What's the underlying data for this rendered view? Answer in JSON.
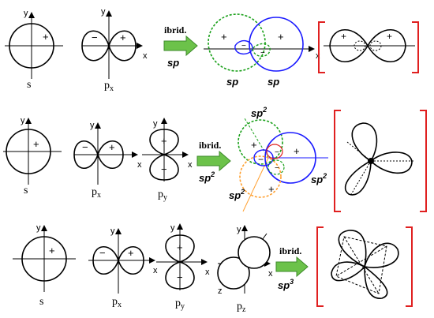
{
  "axes": {
    "x": "x",
    "y": "y",
    "z": "z"
  },
  "signs": {
    "plus": "+",
    "minus": "−"
  },
  "labels": {
    "s": "s",
    "p": "p",
    "px_sub": "x",
    "py_sub": "y",
    "pz_sub": "z"
  },
  "arrow_text": "ibrid.",
  "row1": {
    "hybrid": "sp",
    "lobe_a": "sp",
    "lobe_b": "sp"
  },
  "row2": {
    "hybrid": "sp",
    "sup": "2",
    "lobe_a": "sp",
    "lobe_b": "sp",
    "lobe_c": "sp"
  },
  "row3": {
    "hybrid": "sp",
    "sup": "3"
  },
  "colors": {
    "blue": "#1a1aff",
    "green": "#1aa01a",
    "orange": "#ffa030",
    "bracket": "#e02020",
    "arrow": "#6cc24a"
  }
}
